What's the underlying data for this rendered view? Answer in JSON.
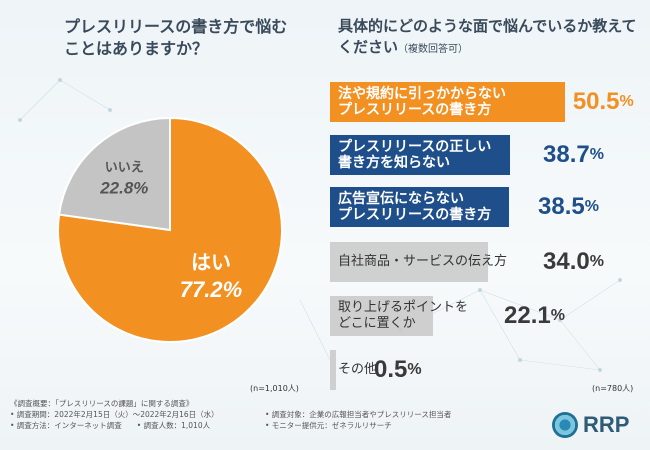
{
  "pie_title": "プレスリリースの書き方で悩むことはありますか？",
  "bar_title": "具体的にどのような面で悩んでいるか教えてください",
  "bar_title_sub": "（複数回答可）",
  "pie_n": "(n=1,010人)",
  "bar_n": "(n=780人)",
  "colors": {
    "orange": "#f39022",
    "gray": "#c4c4c4",
    "navy": "#1f4f8a",
    "light": "#d3d3d3",
    "orange_text": "#f39022",
    "navy_text": "#1f4f8a",
    "dark_text": "#3a3a3a"
  },
  "chart_data": [
    {
      "type": "pie",
      "title": "プレスリリースの書き方で悩むことはありますか？",
      "slices": [
        {
          "label": "はい",
          "value": 77.2,
          "color": "#f39022"
        },
        {
          "label": "いいえ",
          "value": 22.8,
          "color": "#c4c4c4"
        }
      ],
      "n": "(n=1,010人)"
    },
    {
      "type": "bar",
      "orientation": "horizontal",
      "title": "具体的にどのような面で悩んでいるか教えてください（複数回答可）",
      "categories": [
        "法や規約に引っかからないプレスリリースの書き方",
        "プレスリリースの正しい書き方を知らない",
        "広告宣伝にならないプレスリリースの書き方",
        "自社商品・サービスの伝え方",
        "取り上げるポイントをどこに置くか",
        "その他"
      ],
      "values": [
        50.5,
        38.7,
        38.5,
        34.0,
        22.1,
        0.5
      ],
      "unit": "%",
      "n": "(n=780人)"
    }
  ],
  "bars": [
    {
      "lines": [
        "法や規約に引っかからない",
        "プレスリリースの書き方"
      ],
      "value_int": "50.5",
      "style": "orange"
    },
    {
      "lines": [
        "プレスリリースの正しい",
        "書き方を知らない"
      ],
      "value_int": "38.7",
      "style": "navy"
    },
    {
      "lines": [
        "広告宣伝にならない",
        "プレスリリースの書き方"
      ],
      "value_int": "38.5",
      "style": "navy"
    },
    {
      "lines": [
        "自社商品・サービスの伝え方"
      ],
      "value_int": "34.0",
      "style": "light"
    },
    {
      "lines": [
        "取り上げるポイントを",
        "どこに置くか"
      ],
      "value_int": "22.1",
      "style": "light"
    },
    {
      "lines": [
        "その他"
      ],
      "value_int": "0.5",
      "style": "light"
    }
  ],
  "percent_sign": "%",
  "footnote": {
    "l1": "《調査概要：「プレスリリースの課題」に関する調査》",
    "l2a": "• 調査期間：2022年2月15日（火）～2022年2月16日（水）",
    "l2b": "• 調査対象：企業の広報担当者やプレスリリース担当者",
    "l3a": "• 調査方法：インターネット調査　　• 調査人数：1,010人",
    "l3b": "• モニター提供元：ゼネラルリサーチ"
  },
  "logo": "RRP"
}
